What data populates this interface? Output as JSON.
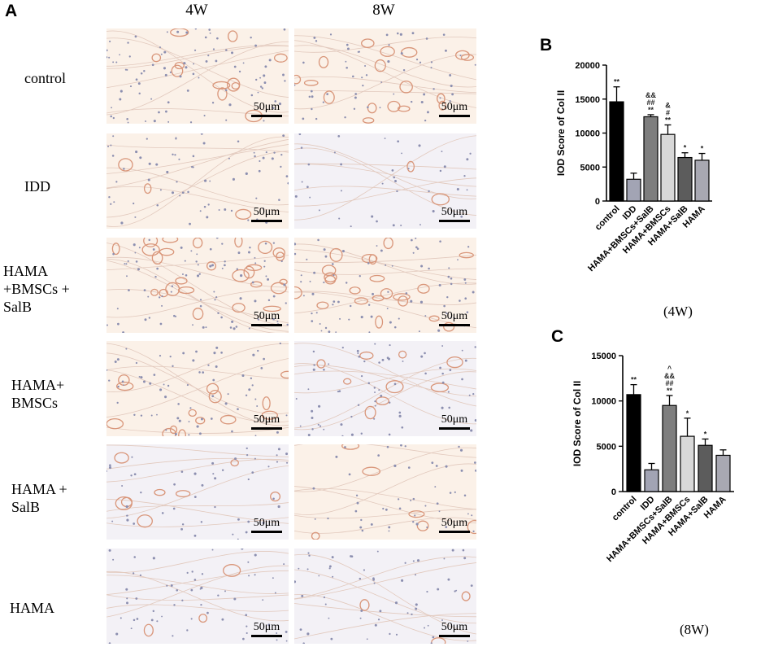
{
  "figure": {
    "panel_a_letter": "A",
    "panel_b_letter": "B",
    "panel_c_letter": "C",
    "columns": [
      "4W",
      "8W"
    ],
    "rows": [
      "control",
      "IDD",
      "HAMA\n+BMSCs +\nSalB",
      "HAMA+\nBMSCs",
      "HAMA +\nSalB",
      "HAMA"
    ],
    "scale_label": "50μm",
    "timepoint_b": "(4W)",
    "timepoint_c": "(8W)",
    "tile_colors": {
      "warm": "#fbf1e8",
      "cool": "#f3f1f6",
      "stain": "#d9967a",
      "nucleus": "#8c8fb0",
      "fiber": "#e2c9bd"
    }
  },
  "tiles": [
    {
      "row": 0,
      "col": 0,
      "tone": "warm",
      "stain": 0.35,
      "nuclei": 90
    },
    {
      "row": 0,
      "col": 1,
      "tone": "warm",
      "stain": 0.55,
      "nuclei": 60
    },
    {
      "row": 1,
      "col": 0,
      "tone": "warm",
      "stain": 0.1,
      "nuclei": 70
    },
    {
      "row": 1,
      "col": 1,
      "tone": "cool",
      "stain": 0.05,
      "nuclei": 40
    },
    {
      "row": 2,
      "col": 0,
      "tone": "warm",
      "stain": 0.85,
      "nuclei": 90
    },
    {
      "row": 2,
      "col": 1,
      "tone": "warm",
      "stain": 0.7,
      "nuclei": 80
    },
    {
      "row": 3,
      "col": 0,
      "tone": "warm",
      "stain": 0.45,
      "nuclei": 70
    },
    {
      "row": 3,
      "col": 1,
      "tone": "cool",
      "stain": 0.3,
      "nuclei": 70
    },
    {
      "row": 4,
      "col": 0,
      "tone": "cool",
      "stain": 0.25,
      "nuclei": 50
    },
    {
      "row": 4,
      "col": 1,
      "tone": "warm",
      "stain": 0.2,
      "nuclei": 50
    },
    {
      "row": 5,
      "col": 0,
      "tone": "cool",
      "stain": 0.1,
      "nuclei": 60
    },
    {
      "row": 5,
      "col": 1,
      "tone": "cool",
      "stain": 0.1,
      "nuclei": 60
    }
  ],
  "chart_data": [
    {
      "type": "bar",
      "panel": "B",
      "title": "",
      "xlabel": "",
      "ylabel": "IOD Score of Col II",
      "ylim": [
        0,
        20000
      ],
      "yticks": [
        "0",
        "5000",
        "10000",
        "15000",
        "20000"
      ],
      "categories": [
        "control",
        "IDD",
        "HAMA+BMSCs+SalB",
        "HAMA+BMSCs",
        "HAMA+SalB",
        "HAMA"
      ],
      "values": [
        14600,
        3200,
        12400,
        9800,
        6400,
        6000
      ],
      "errors": [
        2200,
        900,
        300,
        1400,
        700,
        1000
      ],
      "bar_colors": [
        "#000000",
        "#a2a4b4",
        "#7e7e7e",
        "#d8d8d8",
        "#5c5c5c",
        "#a8a8b2"
      ],
      "annotations": [
        [
          "**"
        ],
        [],
        [
          "&&",
          "##",
          "**"
        ],
        [
          "&",
          "#",
          "**"
        ],
        [
          "*"
        ],
        [
          "*"
        ]
      ]
    },
    {
      "type": "bar",
      "panel": "C",
      "title": "",
      "xlabel": "",
      "ylabel": "IOD Score of Col II",
      "ylim": [
        0,
        15000
      ],
      "yticks": [
        "0",
        "5000",
        "10000",
        "15000"
      ],
      "categories": [
        "control",
        "IDD",
        "HAMA+BMSCs+SalB",
        "HAMA+BMSCs",
        "HAMA+SalB",
        "HAMA"
      ],
      "values": [
        10700,
        2400,
        9500,
        6100,
        5100,
        4000
      ],
      "errors": [
        1100,
        700,
        1100,
        2000,
        700,
        600
      ],
      "bar_colors": [
        "#000000",
        "#a2a4b4",
        "#7e7e7e",
        "#d8d8d8",
        "#5c5c5c",
        "#a8a8b2"
      ],
      "annotations": [
        [
          "**"
        ],
        [],
        [
          "^",
          "&&",
          "##",
          "**"
        ],
        [
          "*"
        ],
        [
          "*"
        ],
        []
      ]
    }
  ]
}
